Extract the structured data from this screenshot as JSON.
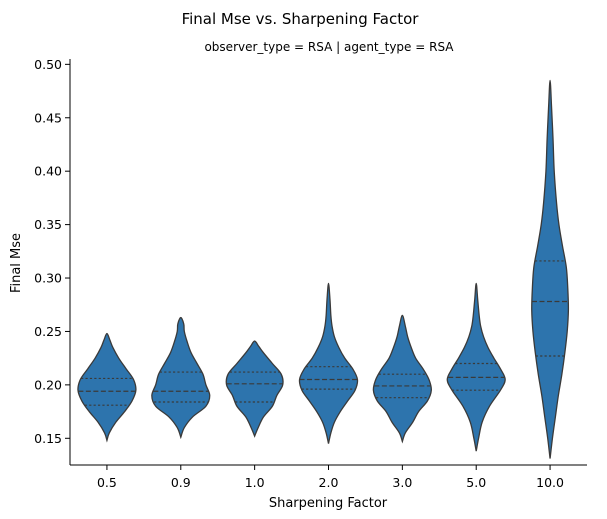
{
  "figure": {
    "suptitle": "Final Mse vs. Sharpening Factor",
    "facet_title": "observer_type = RSA | agent_type = RSA"
  },
  "chart_data": {
    "type": "violin",
    "title": "Final Mse vs. Sharpening Factor",
    "subtitle": "observer_type = RSA | agent_type = RSA",
    "xlabel": "Sharpening Factor",
    "ylabel": "Final Mse",
    "categories": [
      "0.5",
      "0.9",
      "1.0",
      "2.0",
      "3.0",
      "5.0",
      "10.0"
    ],
    "ylim": [
      0.125,
      0.505
    ],
    "yticks": [
      0.15,
      0.2,
      0.25,
      0.3,
      0.35,
      0.4,
      0.45,
      0.5
    ],
    "ytick_labels": [
      "0.15",
      "0.20",
      "0.25",
      "0.30",
      "0.35",
      "0.40",
      "0.45",
      "0.50"
    ],
    "grid": false,
    "inner": "quartile",
    "color": "#2d74ad",
    "edge_color": "#3a3a3a",
    "violins": [
      {
        "category": "0.5",
        "q1": 0.181,
        "median": 0.194,
        "q3": 0.206,
        "profile": [
          [
            0.148,
            0.0
          ],
          [
            0.155,
            0.08
          ],
          [
            0.165,
            0.3
          ],
          [
            0.175,
            0.6
          ],
          [
            0.185,
            0.85
          ],
          [
            0.195,
            0.98
          ],
          [
            0.205,
            0.9
          ],
          [
            0.215,
            0.65
          ],
          [
            0.225,
            0.4
          ],
          [
            0.235,
            0.2
          ],
          [
            0.242,
            0.1
          ],
          [
            0.248,
            0.0
          ]
        ]
      },
      {
        "category": "0.9",
        "q1": 0.184,
        "median": 0.194,
        "q3": 0.212,
        "profile": [
          [
            0.151,
            0.0
          ],
          [
            0.16,
            0.12
          ],
          [
            0.17,
            0.4
          ],
          [
            0.18,
            0.85
          ],
          [
            0.19,
            0.98
          ],
          [
            0.2,
            0.85
          ],
          [
            0.21,
            0.75
          ],
          [
            0.22,
            0.55
          ],
          [
            0.23,
            0.35
          ],
          [
            0.24,
            0.22
          ],
          [
            0.25,
            0.12
          ],
          [
            0.257,
            0.1
          ],
          [
            0.263,
            0.0
          ]
        ]
      },
      {
        "category": "1.0",
        "q1": 0.184,
        "median": 0.201,
        "q3": 0.212,
        "profile": [
          [
            0.152,
            0.0
          ],
          [
            0.16,
            0.12
          ],
          [
            0.17,
            0.3
          ],
          [
            0.18,
            0.6
          ],
          [
            0.19,
            0.75
          ],
          [
            0.2,
            0.95
          ],
          [
            0.21,
            0.9
          ],
          [
            0.22,
            0.6
          ],
          [
            0.23,
            0.3
          ],
          [
            0.236,
            0.14
          ],
          [
            0.241,
            0.0
          ]
        ]
      },
      {
        "category": "2.0",
        "q1": 0.196,
        "median": 0.205,
        "q3": 0.217,
        "profile": [
          [
            0.145,
            0.0
          ],
          [
            0.155,
            0.08
          ],
          [
            0.165,
            0.2
          ],
          [
            0.175,
            0.4
          ],
          [
            0.185,
            0.65
          ],
          [
            0.195,
            0.9
          ],
          [
            0.205,
            0.98
          ],
          [
            0.215,
            0.82
          ],
          [
            0.225,
            0.55
          ],
          [
            0.235,
            0.35
          ],
          [
            0.245,
            0.2
          ],
          [
            0.255,
            0.12
          ],
          [
            0.265,
            0.08
          ],
          [
            0.28,
            0.05
          ],
          [
            0.295,
            0.0
          ]
        ]
      },
      {
        "category": "3.0",
        "q1": 0.188,
        "median": 0.199,
        "q3": 0.21,
        "profile": [
          [
            0.147,
            0.0
          ],
          [
            0.155,
            0.1
          ],
          [
            0.165,
            0.35
          ],
          [
            0.175,
            0.55
          ],
          [
            0.185,
            0.85
          ],
          [
            0.195,
            0.98
          ],
          [
            0.205,
            0.9
          ],
          [
            0.215,
            0.7
          ],
          [
            0.225,
            0.45
          ],
          [
            0.235,
            0.3
          ],
          [
            0.245,
            0.18
          ],
          [
            0.255,
            0.1
          ],
          [
            0.265,
            0.0
          ]
        ]
      },
      {
        "category": "5.0",
        "q1": 0.195,
        "median": 0.207,
        "q3": 0.22,
        "profile": [
          [
            0.138,
            0.0
          ],
          [
            0.15,
            0.08
          ],
          [
            0.165,
            0.2
          ],
          [
            0.18,
            0.45
          ],
          [
            0.195,
            0.82
          ],
          [
            0.205,
            0.98
          ],
          [
            0.215,
            0.82
          ],
          [
            0.225,
            0.6
          ],
          [
            0.235,
            0.4
          ],
          [
            0.245,
            0.25
          ],
          [
            0.255,
            0.15
          ],
          [
            0.265,
            0.1
          ],
          [
            0.28,
            0.05
          ],
          [
            0.295,
            0.0
          ]
        ]
      },
      {
        "category": "10.0",
        "q1": 0.227,
        "median": 0.278,
        "q3": 0.316,
        "profile": [
          [
            0.131,
            0.0
          ],
          [
            0.15,
            0.08
          ],
          [
            0.17,
            0.18
          ],
          [
            0.19,
            0.28
          ],
          [
            0.21,
            0.4
          ],
          [
            0.23,
            0.5
          ],
          [
            0.25,
            0.58
          ],
          [
            0.27,
            0.62
          ],
          [
            0.29,
            0.6
          ],
          [
            0.31,
            0.55
          ],
          [
            0.33,
            0.42
          ],
          [
            0.35,
            0.3
          ],
          [
            0.37,
            0.22
          ],
          [
            0.4,
            0.14
          ],
          [
            0.43,
            0.1
          ],
          [
            0.46,
            0.05
          ],
          [
            0.485,
            0.0
          ]
        ]
      }
    ]
  }
}
